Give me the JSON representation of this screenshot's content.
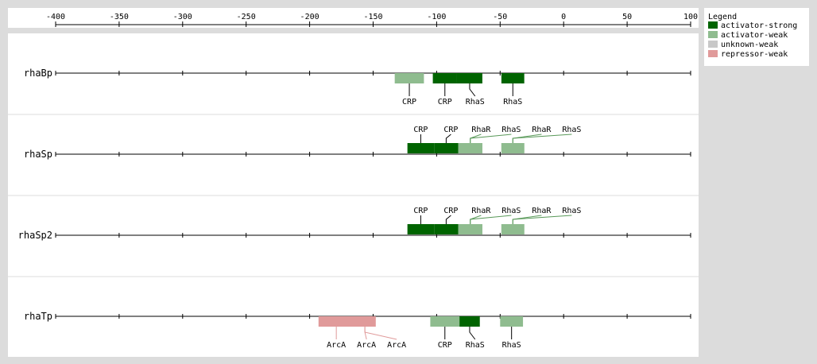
{
  "axis": {
    "ticks": [
      -400,
      -350,
      -300,
      -250,
      -200,
      -150,
      -100,
      -50,
      0,
      50,
      100
    ]
  },
  "legend": {
    "title": "Legend",
    "items": [
      {
        "key": "activator-strong",
        "label": "activator-strong",
        "color": "#006400"
      },
      {
        "key": "activator-weak",
        "label": "activator-weak",
        "color": "#8fbc8f"
      },
      {
        "key": "unknown-weak",
        "label": "unknown-weak",
        "color": "#c8c8c8"
      },
      {
        "key": "repressor-weak",
        "label": "repressor-weak",
        "color": "#e09a9a"
      }
    ]
  },
  "promoters": [
    {
      "name": "rhaBp",
      "sites": [
        {
          "start": -133,
          "end": -110,
          "type": "activator-weak",
          "label": "CRP",
          "label_pos": "below"
        },
        {
          "start": -103,
          "end": -84,
          "type": "activator-strong",
          "label": "CRP",
          "label_pos": "below"
        },
        {
          "start": -84,
          "end": -64,
          "type": "activator-strong",
          "label": "RhaS",
          "label_pos": "below"
        },
        {
          "start": -49,
          "end": -31,
          "type": "activator-strong",
          "label": "RhaS",
          "label_pos": "below"
        }
      ]
    },
    {
      "name": "rhaSp",
      "sites": [
        {
          "start": -123,
          "end": -102,
          "type": "activator-strong",
          "label": "CRP",
          "label_pos": "above"
        },
        {
          "start": -102,
          "end": -83,
          "type": "activator-strong",
          "label": "CRP",
          "label_pos": "above"
        },
        {
          "start": -83,
          "end": -64,
          "type": "activator-weak",
          "label": "RhaR",
          "label_pos": "above"
        },
        {
          "start": -83,
          "end": -64,
          "type": "activator-weak",
          "label": "RhaS",
          "label_pos": "above"
        },
        {
          "start": -49,
          "end": -31,
          "type": "activator-weak",
          "label": "RhaR",
          "label_pos": "above"
        },
        {
          "start": -49,
          "end": -31,
          "type": "activator-weak",
          "label": "RhaS",
          "label_pos": "above"
        }
      ]
    },
    {
      "name": "rhaSp2",
      "sites": [
        {
          "start": -123,
          "end": -102,
          "type": "activator-strong",
          "label": "CRP",
          "label_pos": "above"
        },
        {
          "start": -102,
          "end": -83,
          "type": "activator-strong",
          "label": "CRP",
          "label_pos": "above"
        },
        {
          "start": -83,
          "end": -64,
          "type": "activator-weak",
          "label": "RhaR",
          "label_pos": "above"
        },
        {
          "start": -83,
          "end": -64,
          "type": "activator-weak",
          "label": "RhaS",
          "label_pos": "above"
        },
        {
          "start": -49,
          "end": -31,
          "type": "activator-weak",
          "label": "RhaR",
          "label_pos": "above"
        },
        {
          "start": -49,
          "end": -31,
          "type": "activator-weak",
          "label": "RhaS",
          "label_pos": "above"
        }
      ]
    },
    {
      "name": "rhaTp",
      "sites": [
        {
          "start": -193,
          "end": -165,
          "type": "repressor-weak",
          "label": "ArcA",
          "label_pos": "below"
        },
        {
          "start": -165,
          "end": -148,
          "type": "repressor-weak",
          "label": "ArcA",
          "label_pos": "below"
        },
        {
          "start": -165,
          "end": -148,
          "type": "repressor-weak",
          "label": "ArcA",
          "label_pos": "below"
        },
        {
          "start": -105,
          "end": -82,
          "type": "activator-weak",
          "label": "CRP",
          "label_pos": "below"
        },
        {
          "start": -82,
          "end": -66,
          "type": "activator-strong",
          "label": "RhaS",
          "label_pos": "below"
        },
        {
          "start": -50,
          "end": -32,
          "type": "activator-weak",
          "label": "RhaS",
          "label_pos": "below"
        }
      ]
    }
  ]
}
